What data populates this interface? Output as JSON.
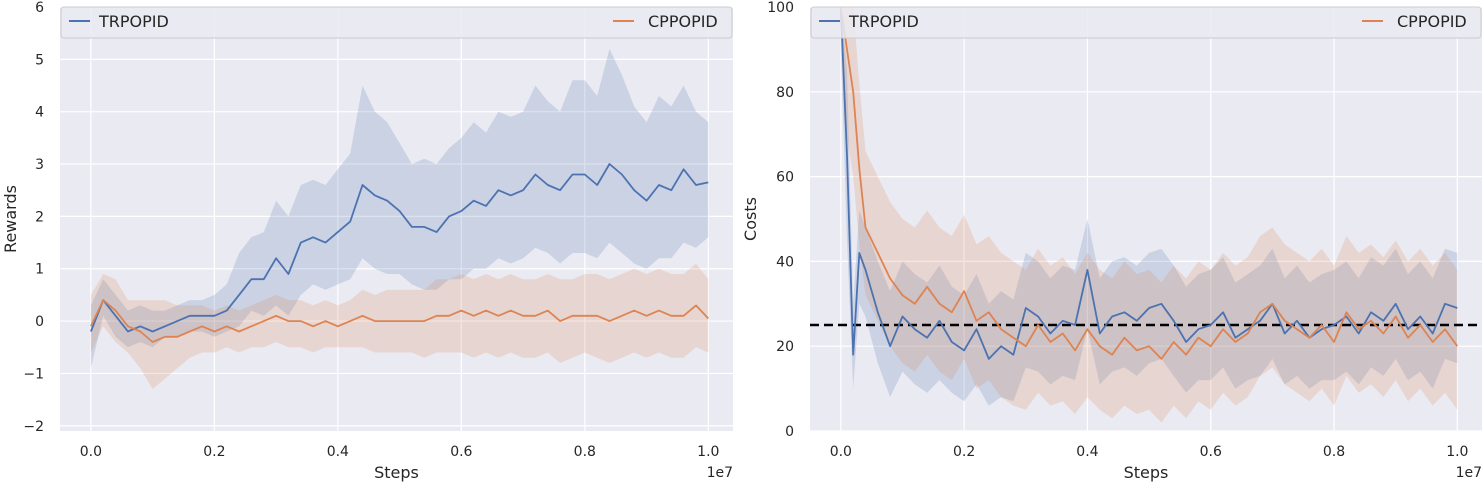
{
  "chart_data": [
    {
      "type": "line",
      "title": "",
      "xlabel": "Steps",
      "ylabel": "Rewards",
      "x_offset_label": "1e7",
      "xlim": [
        -0.05,
        1.04
      ],
      "ylim": [
        -2.1,
        6
      ],
      "xticks": [
        0.0,
        0.2,
        0.4,
        0.6,
        0.8,
        1.0
      ],
      "xtick_labels": [
        "0.0",
        "0.2",
        "0.4",
        "0.6",
        "0.8",
        "1.0"
      ],
      "yticks": [
        -2,
        -1,
        0,
        1,
        2,
        3,
        4,
        5,
        6
      ],
      "ytick_labels": [
        "−2",
        "−1",
        "0",
        "1",
        "2",
        "3",
        "4",
        "5",
        "6"
      ],
      "grid": true,
      "legend_placement": "top",
      "series": [
        {
          "name": "TRPOPID",
          "color": "#4c72b0",
          "x": [
            0.0,
            0.02,
            0.04,
            0.06,
            0.08,
            0.1,
            0.12,
            0.14,
            0.16,
            0.18,
            0.2,
            0.22,
            0.24,
            0.26,
            0.28,
            0.3,
            0.32,
            0.34,
            0.36,
            0.38,
            0.4,
            0.42,
            0.44,
            0.46,
            0.48,
            0.5,
            0.52,
            0.54,
            0.56,
            0.58,
            0.6,
            0.62,
            0.64,
            0.66,
            0.68,
            0.7,
            0.72,
            0.74,
            0.76,
            0.78,
            0.8,
            0.82,
            0.84,
            0.86,
            0.88,
            0.9,
            0.92,
            0.94,
            0.96,
            0.98,
            1.0
          ],
          "mean": [
            -0.2,
            0.4,
            0.1,
            -0.2,
            -0.1,
            -0.2,
            -0.1,
            0.0,
            0.1,
            0.1,
            0.1,
            0.2,
            0.5,
            0.8,
            0.8,
            1.2,
            0.9,
            1.5,
            1.6,
            1.5,
            1.7,
            1.9,
            2.6,
            2.4,
            2.3,
            2.1,
            1.8,
            1.8,
            1.7,
            2.0,
            2.1,
            2.3,
            2.2,
            2.5,
            2.4,
            2.5,
            2.8,
            2.6,
            2.5,
            2.8,
            2.8,
            2.6,
            3.0,
            2.8,
            2.5,
            2.3,
            2.6,
            2.5,
            2.9,
            2.6,
            2.65
          ],
          "lower": [
            -0.9,
            0.1,
            -0.3,
            -0.5,
            -0.4,
            -0.5,
            -0.3,
            -0.3,
            -0.2,
            -0.2,
            -0.3,
            -0.2,
            -0.1,
            0.2,
            0.1,
            0.3,
            0.1,
            0.5,
            0.7,
            0.6,
            0.7,
            0.8,
            1.2,
            1.0,
            0.9,
            0.9,
            0.7,
            0.6,
            0.6,
            0.8,
            0.8,
            1.0,
            1.0,
            1.2,
            1.1,
            1.2,
            1.4,
            1.3,
            1.1,
            1.3,
            1.3,
            1.2,
            1.5,
            1.3,
            1.1,
            1.0,
            1.2,
            1.2,
            1.5,
            1.4,
            1.6
          ],
          "upper": [
            0.3,
            0.8,
            0.5,
            0.2,
            0.3,
            0.2,
            0.2,
            0.3,
            0.4,
            0.4,
            0.5,
            0.7,
            1.3,
            1.6,
            1.7,
            2.3,
            2.0,
            2.6,
            2.7,
            2.6,
            2.9,
            3.2,
            4.5,
            4.0,
            3.8,
            3.4,
            3.0,
            3.1,
            3.0,
            3.3,
            3.5,
            3.8,
            3.6,
            4.0,
            3.9,
            4.0,
            4.5,
            4.2,
            4.0,
            4.6,
            4.6,
            4.3,
            5.2,
            4.7,
            4.1,
            3.8,
            4.3,
            4.1,
            4.5,
            4.0,
            3.8
          ]
        },
        {
          "name": "CPPOPID",
          "color": "#dd8452",
          "x": [
            0.0,
            0.02,
            0.04,
            0.06,
            0.08,
            0.1,
            0.12,
            0.14,
            0.16,
            0.18,
            0.2,
            0.22,
            0.24,
            0.26,
            0.28,
            0.3,
            0.32,
            0.34,
            0.36,
            0.38,
            0.4,
            0.42,
            0.44,
            0.46,
            0.48,
            0.5,
            0.52,
            0.54,
            0.56,
            0.58,
            0.6,
            0.62,
            0.64,
            0.66,
            0.68,
            0.7,
            0.72,
            0.74,
            0.76,
            0.78,
            0.8,
            0.82,
            0.84,
            0.86,
            0.88,
            0.9,
            0.92,
            0.94,
            0.96,
            0.98,
            1.0
          ],
          "mean": [
            -0.1,
            0.4,
            0.2,
            -0.1,
            -0.2,
            -0.4,
            -0.3,
            -0.3,
            -0.2,
            -0.1,
            -0.2,
            -0.1,
            -0.2,
            -0.1,
            0.0,
            0.1,
            0.0,
            0.0,
            -0.1,
            0.0,
            -0.1,
            0.0,
            0.1,
            0.0,
            0.0,
            0.0,
            0.0,
            0.0,
            0.1,
            0.1,
            0.2,
            0.1,
            0.2,
            0.1,
            0.2,
            0.1,
            0.1,
            0.2,
            0.0,
            0.1,
            0.1,
            0.1,
            0.0,
            0.1,
            0.2,
            0.1,
            0.2,
            0.1,
            0.1,
            0.3,
            0.05
          ],
          "lower": [
            -0.6,
            -0.1,
            -0.4,
            -0.6,
            -0.9,
            -1.3,
            -1.1,
            -0.9,
            -0.7,
            -0.6,
            -0.6,
            -0.5,
            -0.6,
            -0.5,
            -0.5,
            -0.4,
            -0.5,
            -0.5,
            -0.6,
            -0.5,
            -0.5,
            -0.5,
            -0.5,
            -0.6,
            -0.6,
            -0.6,
            -0.6,
            -0.7,
            -0.6,
            -0.6,
            -0.6,
            -0.7,
            -0.6,
            -0.7,
            -0.6,
            -0.7,
            -0.7,
            -0.6,
            -0.8,
            -0.7,
            -0.6,
            -0.7,
            -0.8,
            -0.7,
            -0.6,
            -0.7,
            -0.6,
            -0.7,
            -0.7,
            -0.5,
            -0.6
          ],
          "upper": [
            0.5,
            0.9,
            0.8,
            0.4,
            0.4,
            0.4,
            0.4,
            0.3,
            0.3,
            0.3,
            0.2,
            0.3,
            0.2,
            0.3,
            0.4,
            0.5,
            0.4,
            0.4,
            0.3,
            0.4,
            0.3,
            0.4,
            0.6,
            0.5,
            0.6,
            0.6,
            0.6,
            0.6,
            0.8,
            0.8,
            0.9,
            0.8,
            0.9,
            0.8,
            0.9,
            0.8,
            0.8,
            0.9,
            0.8,
            0.8,
            0.9,
            0.9,
            0.8,
            0.9,
            1.0,
            0.9,
            1.0,
            0.9,
            0.9,
            1.1,
            0.8
          ]
        }
      ]
    },
    {
      "type": "line",
      "title": "",
      "xlabel": "Steps",
      "ylabel": "Costs",
      "x_offset_label": "1e7",
      "xlim": [
        -0.05,
        1.04
      ],
      "ylim": [
        0,
        100
      ],
      "xticks": [
        0.0,
        0.2,
        0.4,
        0.6,
        0.8,
        1.0
      ],
      "xtick_labels": [
        "0.0",
        "0.2",
        "0.4",
        "0.6",
        "0.8",
        "1.0"
      ],
      "yticks": [
        0,
        20,
        40,
        60,
        80,
        100
      ],
      "ytick_labels": [
        "0",
        "20",
        "40",
        "60",
        "80",
        "100"
      ],
      "grid": true,
      "legend_placement": "top",
      "threshold": 25,
      "series": [
        {
          "name": "TRPOPID",
          "color": "#4c72b0",
          "x": [
            0.0,
            0.01,
            0.02,
            0.03,
            0.04,
            0.06,
            0.08,
            0.1,
            0.12,
            0.14,
            0.16,
            0.18,
            0.2,
            0.22,
            0.24,
            0.26,
            0.28,
            0.3,
            0.32,
            0.34,
            0.36,
            0.38,
            0.4,
            0.42,
            0.44,
            0.46,
            0.48,
            0.5,
            0.52,
            0.54,
            0.56,
            0.58,
            0.6,
            0.62,
            0.64,
            0.66,
            0.68,
            0.7,
            0.72,
            0.74,
            0.76,
            0.78,
            0.8,
            0.82,
            0.84,
            0.86,
            0.88,
            0.9,
            0.92,
            0.94,
            0.96,
            0.98,
            1.0
          ],
          "mean": [
            100,
            65,
            18,
            42,
            38,
            28,
            20,
            27,
            24,
            22,
            26,
            21,
            19,
            24,
            17,
            20,
            18,
            29,
            27,
            23,
            26,
            25,
            38,
            23,
            27,
            28,
            26,
            29,
            30,
            26,
            21,
            24,
            25,
            28,
            22,
            24,
            26,
            30,
            23,
            26,
            22,
            24,
            25,
            27,
            23,
            28,
            26,
            30,
            24,
            27,
            23,
            30,
            29
          ],
          "lower": [
            90,
            45,
            10,
            30,
            27,
            16,
            8,
            14,
            11,
            9,
            12,
            9,
            7,
            11,
            6,
            8,
            7,
            15,
            14,
            11,
            13,
            12,
            24,
            11,
            14,
            15,
            13,
            16,
            17,
            13,
            9,
            12,
            12,
            15,
            10,
            12,
            13,
            17,
            11,
            13,
            10,
            12,
            12,
            14,
            11,
            15,
            13,
            17,
            12,
            14,
            10,
            17,
            16
          ],
          "upper": [
            100,
            85,
            30,
            52,
            48,
            40,
            33,
            40,
            37,
            35,
            39,
            34,
            32,
            37,
            30,
            33,
            31,
            42,
            40,
            36,
            39,
            38,
            50,
            36,
            40,
            41,
            39,
            42,
            43,
            39,
            34,
            37,
            38,
            41,
            35,
            37,
            39,
            43,
            36,
            39,
            35,
            37,
            38,
            40,
            36,
            41,
            39,
            43,
            37,
            40,
            36,
            43,
            42
          ]
        },
        {
          "name": "CPPOPID",
          "color": "#dd8452",
          "x": [
            0.0,
            0.01,
            0.02,
            0.03,
            0.04,
            0.06,
            0.08,
            0.1,
            0.12,
            0.14,
            0.16,
            0.18,
            0.2,
            0.22,
            0.24,
            0.26,
            0.28,
            0.3,
            0.32,
            0.34,
            0.36,
            0.38,
            0.4,
            0.42,
            0.44,
            0.46,
            0.48,
            0.5,
            0.52,
            0.54,
            0.56,
            0.58,
            0.6,
            0.62,
            0.64,
            0.66,
            0.68,
            0.7,
            0.72,
            0.74,
            0.76,
            0.78,
            0.8,
            0.82,
            0.84,
            0.86,
            0.88,
            0.9,
            0.92,
            0.94,
            0.96,
            0.98,
            1.0
          ],
          "mean": [
            100,
            90,
            80,
            62,
            48,
            42,
            36,
            32,
            30,
            34,
            30,
            28,
            33,
            26,
            28,
            24,
            22,
            20,
            25,
            21,
            23,
            19,
            24,
            20,
            18,
            22,
            19,
            20,
            17,
            21,
            18,
            22,
            20,
            24,
            21,
            23,
            28,
            30,
            26,
            24,
            22,
            25,
            21,
            28,
            24,
            26,
            23,
            27,
            22,
            25,
            21,
            24,
            20
          ],
          "lower": [
            100,
            70,
            60,
            44,
            32,
            26,
            20,
            16,
            14,
            18,
            14,
            12,
            17,
            10,
            12,
            8,
            6,
            5,
            9,
            6,
            7,
            4,
            8,
            5,
            3,
            6,
            4,
            5,
            2,
            6,
            3,
            7,
            5,
            9,
            6,
            8,
            13,
            15,
            11,
            9,
            7,
            10,
            6,
            13,
            9,
            11,
            8,
            12,
            7,
            10,
            6,
            9,
            5
          ],
          "upper": [
            100,
            100,
            100,
            82,
            66,
            60,
            54,
            50,
            48,
            52,
            48,
            46,
            51,
            44,
            46,
            42,
            40,
            38,
            43,
            39,
            41,
            37,
            42,
            38,
            36,
            40,
            37,
            38,
            35,
            39,
            36,
            40,
            38,
            42,
            39,
            41,
            46,
            48,
            44,
            42,
            40,
            43,
            39,
            46,
            42,
            44,
            41,
            45,
            40,
            43,
            39,
            42,
            38
          ]
        }
      ]
    }
  ]
}
